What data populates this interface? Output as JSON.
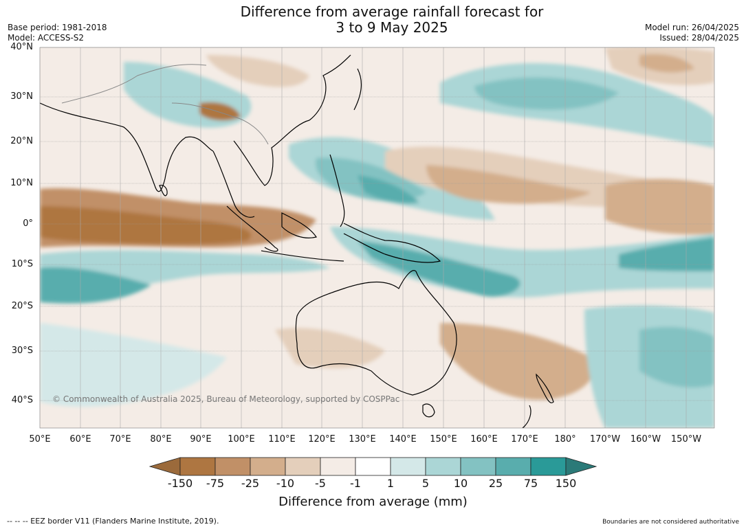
{
  "title_line1": "Difference from average rainfall forecast for",
  "title_line2": "3 to 9 May 2025",
  "base_period": "Base period: 1981-2018",
  "model": "Model: ACCESS-S2",
  "model_run": "Model run: 26/04/2025",
  "issued": "Issued: 28/04/2025",
  "lat_labels": [
    "40°N",
    "30°N",
    "20°N",
    "10°N",
    "0°",
    "10°S",
    "20°S",
    "30°S",
    "40°S"
  ],
  "lon_labels": [
    "50°E",
    "60°E",
    "70°E",
    "80°E",
    "90°E",
    "100°E",
    "110°E",
    "120°E",
    "130°E",
    "140°E",
    "150°E",
    "160°E",
    "170°E",
    "180°",
    "170°W",
    "160°W",
    "150°W"
  ],
  "copyright": "© Commonwealth of Australia 2025, Bureau of Meteorology, supported by COSPPac",
  "colorbar": {
    "labels": [
      "-150",
      "-75",
      "-25",
      "-10",
      "-5",
      "-1",
      "1",
      "5",
      "10",
      "25",
      "75",
      "150"
    ],
    "colors": [
      "#9b6a3b",
      "#ae7641",
      "#c19067",
      "#d3ae8c",
      "#e4cfbb",
      "#f4ece6",
      "#ffffff",
      "#d4e8e8",
      "#abd6d6",
      "#83c2c2",
      "#59adad",
      "#2a9a98",
      "#2b7a78"
    ],
    "title": "Difference from average (mm)"
  },
  "footer_left": "--  --  -- EEZ border V11 (Flanders Marine Institute, 2019).",
  "footer_right": "Boundaries are not considered authoritative"
}
